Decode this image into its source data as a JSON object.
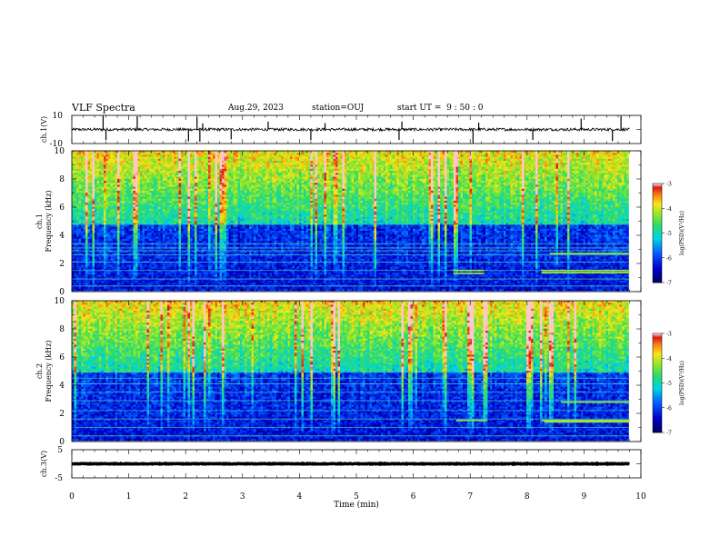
{
  "header": {
    "title": "VLF Spectra",
    "date": "Aug.29, 2023",
    "station": "station=OUJ",
    "start_ut": "start UT =  9 : 50 : 0"
  },
  "chart_data": [
    {
      "type": "line",
      "name": "ch1-waveform",
      "ylabel": "ch.1(V)",
      "ylim": [
        -10,
        10
      ],
      "yticks": [
        "10",
        "-10"
      ],
      "xlim": [
        0,
        9.8
      ],
      "baseline": 0,
      "noise_amplitude": 1.0,
      "spikes": [
        0.55,
        0.6,
        1.15,
        2.05,
        2.2,
        2.25,
        2.3,
        2.8,
        3.45,
        4.2,
        4.45,
        5.75,
        5.8,
        7.05,
        7.15,
        8.1,
        8.95,
        9.5,
        9.65
      ]
    },
    {
      "type": "heatmap",
      "name": "ch1-spectrogram",
      "ylabel": "ch.1\nFrequency (kHz)",
      "ylim": [
        0,
        10
      ],
      "yticks": [
        0,
        2,
        4,
        6,
        8,
        10
      ],
      "xlim": [
        0,
        9.8
      ],
      "colorbar": {
        "label": "log(PSD)(V²/Hz)",
        "range": [
          -7,
          -3
        ],
        "ticks": [
          "-3",
          "-4",
          "-5",
          "-6",
          "-7"
        ]
      },
      "background_cutoff_khz": 4.7,
      "tones_khz": [
        0.4,
        0.9,
        1.5,
        2.1,
        2.6,
        2.9,
        3.1,
        3.4
      ],
      "late_tones": [
        {
          "x": [
            6.7,
            7.25
          ],
          "f": 1.5
        },
        {
          "x": [
            6.7,
            7.25
          ],
          "f": 1.3
        },
        {
          "x": [
            8.25,
            9.8
          ],
          "f": 1.5
        },
        {
          "x": [
            8.25,
            9.8
          ],
          "f": 1.35
        },
        {
          "x": [
            8.4,
            9.8
          ],
          "f": 2.7
        }
      ]
    },
    {
      "type": "heatmap",
      "name": "ch2-spectrogram",
      "ylabel": "ch.2\nFrequency (kHz)",
      "ylim": [
        0,
        10
      ],
      "yticks": [
        0,
        2,
        4,
        6,
        8,
        10
      ],
      "xlim": [
        0,
        9.8
      ],
      "colorbar": {
        "label": "log(PSD)(V²/Hz)",
        "range": [
          -7,
          -3
        ],
        "ticks": [
          "-3",
          "-4",
          "-5",
          "-6",
          "-7"
        ]
      },
      "background_cutoff_khz": 4.9,
      "tones_khz": [
        0.4,
        1.0,
        1.6,
        2.2,
        2.9,
        3.5,
        4.1,
        4.5
      ],
      "late_tones": [
        {
          "x": [
            6.75,
            7.3
          ],
          "f": 1.5
        },
        {
          "x": [
            8.25,
            9.8
          ],
          "f": 1.5
        },
        {
          "x": [
            8.3,
            9.8
          ],
          "f": 1.4
        },
        {
          "x": [
            8.6,
            9.8
          ],
          "f": 2.8
        }
      ]
    },
    {
      "type": "line",
      "name": "ch3-waveform",
      "ylabel": "ch.3(V)",
      "ylim": [
        -5,
        5
      ],
      "yticks": [
        "5",
        "-5"
      ],
      "xlim": [
        0,
        9.8
      ],
      "baseline": 0,
      "noise_amplitude": 0.3
    }
  ],
  "x_axis": {
    "label": "Time (min)",
    "lim": [
      0,
      10
    ],
    "ticks": [
      "0",
      "1",
      "2",
      "3",
      "4",
      "5",
      "6",
      "7",
      "8",
      "9",
      "10"
    ]
  }
}
